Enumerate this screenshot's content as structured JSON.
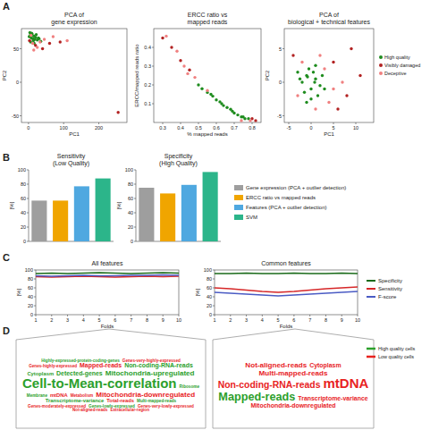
{
  "panel_labels": [
    "A",
    "B",
    "C",
    "D"
  ],
  "chart_data": [
    {
      "type": "scatter",
      "title": "PCA of\ngene expression",
      "xlabel": "PC1",
      "ylabel": "PC2",
      "xlim": [
        -20,
        280
      ],
      "xticks": [
        0,
        100,
        200
      ],
      "ylim": [
        -60,
        80
      ],
      "yticks": [
        -50,
        0,
        50
      ],
      "series": [
        {
          "color": "#1e8c1e",
          "x": [
            2,
            5,
            8,
            10,
            12,
            15,
            18,
            20,
            22,
            25,
            28,
            6,
            9,
            14,
            30,
            35,
            4,
            16
          ],
          "values": [
            68,
            70,
            66,
            72,
            65,
            69,
            64,
            67,
            71,
            63,
            66,
            60,
            73,
            62,
            65,
            61,
            74,
            58
          ]
        },
        {
          "color": "#b22222",
          "x": [
            3,
            20,
            40,
            60,
            90,
            255
          ],
          "values": [
            62,
            55,
            50,
            58,
            60,
            -45
          ]
        },
        {
          "color": "#f08080",
          "x": [
            7,
            12,
            25,
            45,
            70,
            110,
            15,
            33
          ],
          "values": [
            70,
            58,
            52,
            64,
            68,
            62,
            48,
            60
          ]
        }
      ]
    },
    {
      "type": "scatter",
      "title": "ERCC ratio vs\nmapped reads",
      "xlabel": "% mapped reads",
      "ylabel": "ERCC/mapped reads ratio",
      "xlim": [
        0.25,
        0.85
      ],
      "xticks": [
        0.3,
        0.4,
        0.5,
        0.6,
        0.7,
        0.8
      ],
      "ylim": [
        0,
        0.5
      ],
      "yticks": [
        0.1,
        0.2,
        0.3,
        0.4
      ],
      "series": [
        {
          "color": "#1e8c1e",
          "x": [
            0.5,
            0.52,
            0.55,
            0.57,
            0.6,
            0.62,
            0.64,
            0.66,
            0.68,
            0.7,
            0.72,
            0.74,
            0.75,
            0.76,
            0.78,
            0.58,
            0.63,
            0.69
          ],
          "values": [
            0.2,
            0.18,
            0.16,
            0.15,
            0.12,
            0.11,
            0.09,
            0.08,
            0.07,
            0.05,
            0.04,
            0.03,
            0.03,
            0.02,
            0.02,
            0.14,
            0.1,
            0.06
          ]
        },
        {
          "color": "#b22222",
          "x": [
            0.3,
            0.35,
            0.4,
            0.45,
            0.8,
            0.82
          ],
          "values": [
            0.45,
            0.4,
            0.33,
            0.28,
            0.02,
            0.01
          ]
        },
        {
          "color": "#f08080",
          "x": [
            0.32,
            0.38,
            0.42,
            0.48,
            0.55,
            0.74,
            0.79,
            0.44
          ],
          "values": [
            0.46,
            0.38,
            0.3,
            0.24,
            0.17,
            0.01,
            0.01,
            0.26
          ]
        }
      ]
    },
    {
      "type": "scatter",
      "title": "PCA of\nbiological + technical features",
      "xlabel": "PC1",
      "ylabel": "PC2",
      "xlim": [
        -6,
        14
      ],
      "xticks": [
        -5,
        0,
        5,
        10
      ],
      "ylim": [
        -6,
        8
      ],
      "yticks": [
        -5,
        0,
        5
      ],
      "legend": "right",
      "series": [
        {
          "name": "High quality",
          "color": "#1e8c1e",
          "x": [
            -2,
            -1,
            0,
            1,
            2,
            -1.5,
            0.5,
            1.5,
            -0.5,
            2.5,
            -2.5,
            0,
            1,
            -1,
            3,
            -3,
            0.8,
            -0.8
          ],
          "values": [
            0,
            1,
            -1,
            0.5,
            -0.5,
            -1.5,
            1.5,
            -2,
            2,
            1,
            0.5,
            -2.5,
            2.5,
            -3,
            -1,
            1.5,
            0,
            0.8
          ]
        },
        {
          "name": "Visibly damaged",
          "color": "#b22222",
          "x": [
            5,
            8,
            11,
            -4,
            6,
            9
          ],
          "values": [
            3,
            -2,
            1,
            4,
            -4,
            5
          ]
        },
        {
          "name": "Deceptive",
          "color": "#f08080",
          "x": [
            3,
            4,
            -3,
            2,
            7,
            -2,
            5,
            1
          ],
          "values": [
            2,
            -3,
            -2,
            4,
            0,
            3,
            -1,
            -4
          ]
        }
      ]
    },
    {
      "type": "bar",
      "title": "Sensitivity\n(Low Quality)",
      "ylabel": "[%]",
      "categories": [
        null,
        null,
        null,
        null
      ],
      "values": [
        57,
        57,
        77,
        88
      ],
      "colors": [
        "#9e9e9e",
        "#f0a500",
        "#4fa8e0",
        "#2cb58a"
      ],
      "ylim": [
        0,
        100
      ],
      "yticks": [
        0,
        20,
        40,
        60,
        80,
        100
      ],
      "tick_labels": "y"
    },
    {
      "type": "bar",
      "title": "Specificity\n(High Quality)",
      "ylabel": "[%]",
      "categories": [
        "Gene expression (PCA + outlier detection)",
        "ERCC ratio vs mapped reads",
        "Features (PCA + outlier detection)",
        "SVM"
      ],
      "values": [
        75,
        67,
        79,
        97
      ],
      "colors": [
        "#9e9e9e",
        "#f0a500",
        "#4fa8e0",
        "#2cb58a"
      ],
      "ylim": [
        0,
        100
      ],
      "yticks": [
        0,
        20,
        40,
        60,
        80,
        100
      ],
      "tick_labels": "y",
      "legend": "right"
    },
    {
      "type": "line",
      "title": "All features",
      "xlabel": "Folds",
      "ylabel": "[%]",
      "x": [
        1,
        2,
        3,
        4,
        5,
        6,
        7,
        8,
        9,
        10
      ],
      "xlim": [
        1,
        10
      ],
      "xticks": [
        1,
        2,
        3,
        4,
        5,
        6,
        7,
        8,
        9,
        10
      ],
      "ylim": [
        0,
        100
      ],
      "yticks": [
        0,
        20,
        40,
        60,
        80,
        100
      ],
      "series": [
        {
          "color": "#1a6b1a",
          "values": [
            92,
            93,
            92,
            93,
            94,
            93,
            92,
            93,
            94,
            93
          ]
        },
        {
          "color": "#d62728",
          "values": [
            85,
            84,
            85,
            86,
            85,
            84,
            85,
            86,
            85,
            86
          ]
        },
        {
          "color": "#4a5bc4",
          "values": [
            87,
            86,
            87,
            88,
            87,
            87,
            88,
            88,
            89,
            88
          ]
        }
      ]
    },
    {
      "type": "line",
      "title": "Common features",
      "xlabel": "Folds",
      "ylabel": "[%]",
      "x": [
        1,
        2,
        3,
        4,
        5,
        6,
        7,
        8,
        9,
        10
      ],
      "xlim": [
        1,
        10
      ],
      "xticks": [
        1,
        2,
        3,
        4,
        5,
        6,
        7,
        8,
        9,
        10
      ],
      "ylim": [
        0,
        100
      ],
      "yticks": [
        0,
        20,
        40,
        60,
        80,
        100
      ],
      "legend": "right",
      "series": [
        {
          "name": "Specificity",
          "color": "#1a6b1a",
          "values": [
            92,
            92,
            93,
            92,
            92,
            93,
            92,
            92,
            93,
            92
          ]
        },
        {
          "name": "Sensitivity",
          "color": "#d62728",
          "values": [
            60,
            58,
            55,
            52,
            50,
            52,
            55,
            58,
            60,
            62
          ]
        },
        {
          "name": "F-score",
          "color": "#4a5bc4",
          "values": [
            50,
            48,
            46,
            44,
            42,
            44,
            46,
            48,
            50,
            52
          ]
        }
      ]
    },
    {
      "type": "wordcloud",
      "words": [
        {
          "text": "Highly-expressed-protein-coding-genes",
          "color": "#2ca02c",
          "weight": 1
        },
        {
          "text": "Genes-very-highly-expressed",
          "color": "#e8231f",
          "weight": 1
        },
        {
          "text": "Genes-highly-expressed",
          "color": "#e8231f",
          "weight": 1
        },
        {
          "text": "Mapped-reads",
          "color": "#e8231f",
          "weight": 3
        },
        {
          "text": "Non-coding-RNA-reads",
          "color": "#2ca02c",
          "weight": 3
        },
        {
          "text": "Cytoplasm",
          "color": "#2ca02c",
          "weight": 2
        },
        {
          "text": "Detected-genes",
          "color": "#2ca02c",
          "weight": 3
        },
        {
          "text": "Mitochondria-upregulated",
          "color": "#2ca02c",
          "weight": 4
        },
        {
          "text": "Cell-to-Mean-correlation",
          "color": "#2ca02c",
          "weight": 10
        },
        {
          "text": "Ribosome",
          "color": "#2ca02c",
          "weight": 1
        },
        {
          "text": "Membrane",
          "color": "#2ca02c",
          "weight": 1
        },
        {
          "text": "mtDNA",
          "color": "#e8231f",
          "weight": 2
        },
        {
          "text": "Metabolism",
          "color": "#e8231f",
          "weight": 1
        },
        {
          "text": "Mitochondria-downregulated",
          "color": "#e8231f",
          "weight": 4
        },
        {
          "text": "Transcriptome-variance",
          "color": "#2ca02c",
          "weight": 2
        },
        {
          "text": "Total-reads",
          "color": "#e8231f",
          "weight": 2
        },
        {
          "text": "Multi-mapped-reads",
          "color": "#2ca02c",
          "weight": 1
        },
        {
          "text": "Genes-moderately-expressed",
          "color": "#e8231f",
          "weight": 1
        },
        {
          "text": "Genes-lowly-expressed",
          "color": "#2ca02c",
          "weight": 1
        },
        {
          "text": "Genes-very-lowly-expressed",
          "color": "#e8231f",
          "weight": 1
        },
        {
          "text": "Not-aligned-reads",
          "color": "#e8231f",
          "weight": 1
        },
        {
          "text": "Extracellular-region",
          "color": "#e8231f",
          "weight": 1
        }
      ]
    },
    {
      "type": "wordcloud",
      "legend": "right",
      "series": [
        {
          "name": "High quality cells",
          "color": "#2ca02c"
        },
        {
          "name": "Low quality cells",
          "color": "#e8231f"
        }
      ],
      "words": [
        {
          "text": "Not-aligned-reads",
          "color": "#e8231f",
          "weight": 4
        },
        {
          "text": "Cytoplasm",
          "color": "#e8231f",
          "weight": 3
        },
        {
          "text": "Multi-mapped-reads",
          "color": "#e8231f",
          "weight": 4
        },
        {
          "text": "Non-coding-RNA-reads",
          "color": "#e8231f",
          "weight": 6
        },
        {
          "text": "mtDNA",
          "color": "#e8231f",
          "weight": 10
        },
        {
          "text": "Mapped-reads",
          "color": "#2ca02c",
          "weight": 8
        },
        {
          "text": "Transcriptome-variance",
          "color": "#e8231f",
          "weight": 3
        },
        {
          "text": "Mitochondria-downregulated",
          "color": "#e8231f",
          "weight": 3
        }
      ]
    }
  ]
}
